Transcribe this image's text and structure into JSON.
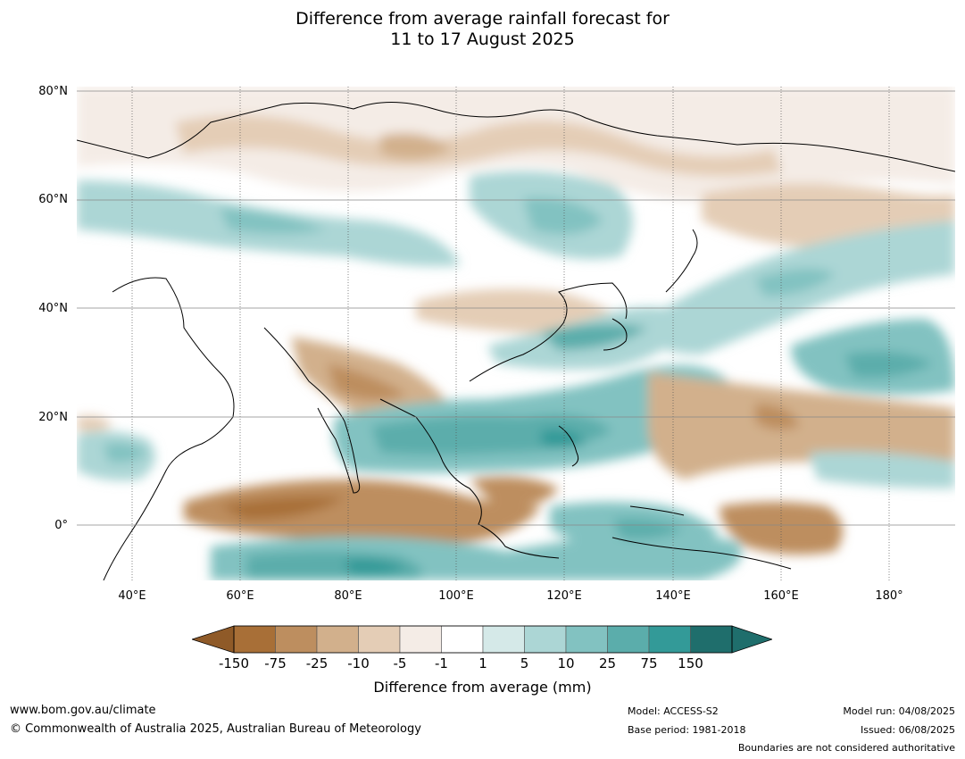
{
  "title": {
    "line1": "Difference from average rainfall forecast for",
    "line2": "11 to 17 August 2025"
  },
  "map": {
    "lat_labels": [
      "80°N",
      "60°N",
      "40°N",
      "20°N",
      "0°"
    ],
    "lon_labels": [
      "40°E",
      "60°E",
      "80°E",
      "100°E",
      "120°E",
      "140°E",
      "160°E",
      "180°"
    ]
  },
  "colorbar": {
    "labels": [
      "-150",
      "-75",
      "-25",
      "-10",
      "-5",
      "-1",
      "1",
      "5",
      "10",
      "25",
      "75",
      "150"
    ],
    "colors": [
      "#a86f37",
      "#bd8e5f",
      "#d2b08c",
      "#e4cdb6",
      "#f4ece6",
      "#ffffff",
      "#d5e9e8",
      "#acd6d5",
      "#82c2c1",
      "#5badab",
      "#339a98",
      "#1f6e6c"
    ],
    "under_color": "#8f5a28",
    "over_color": "#1f6e6c",
    "title": "Difference from average (mm)"
  },
  "footer": {
    "website": "www.bom.gov.au/climate",
    "copyright": "© Commonwealth of Australia 2025, Australian Bureau of Meteorology",
    "model": "Model: ACCESS-S2",
    "base_period": "Base period: 1981-2018",
    "model_run": "Model run: 04/08/2025",
    "issued": "Issued: 06/08/2025",
    "disclaimer": "Boundaries are not considered authoritative"
  }
}
